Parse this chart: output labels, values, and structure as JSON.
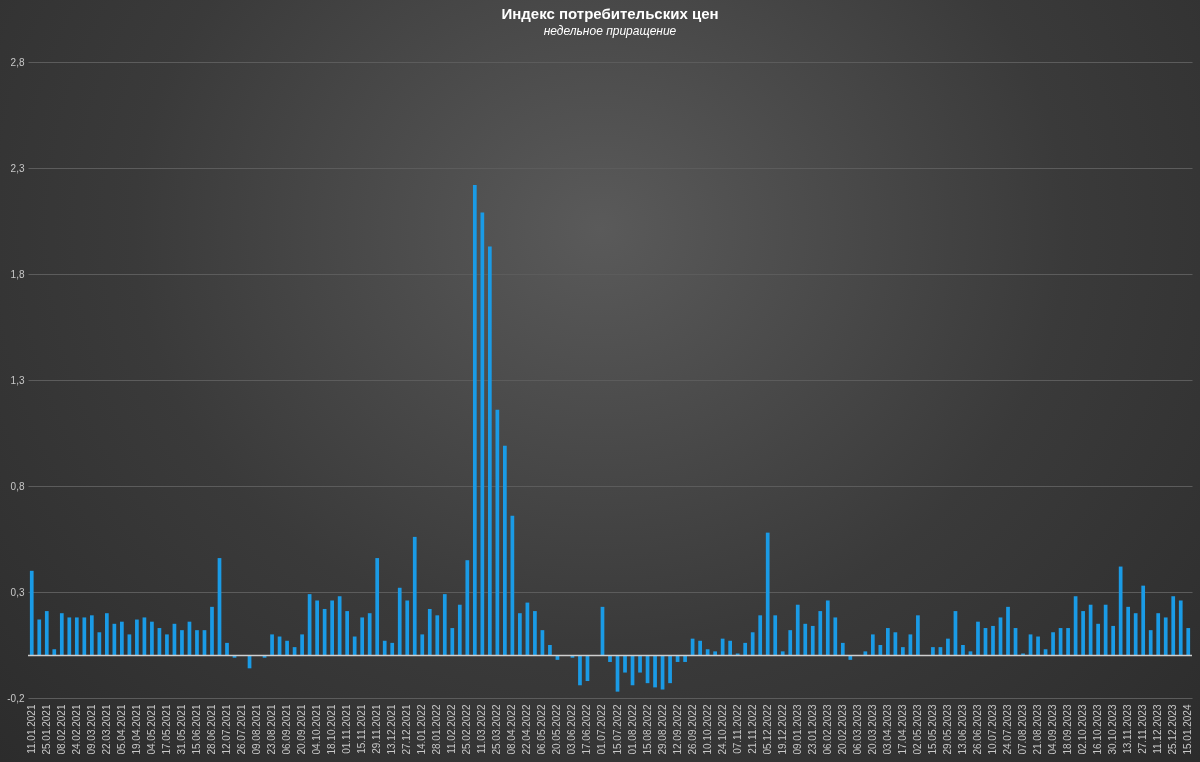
{
  "chart_data": {
    "type": "bar",
    "title": "Индекс потребительских цен",
    "subtitle": "недельное приращение",
    "categories": [
      "11.01.2021",
      null,
      "25.01.2021",
      null,
      "08.02.2021",
      null,
      "24.02.2021",
      null,
      "09.03.2021",
      null,
      "22.03.2021",
      null,
      "05.04.2021",
      null,
      "19.04.2021",
      null,
      "04.05.2021",
      null,
      "17.05.2021",
      null,
      "31.05.2021",
      null,
      "15.06.2021",
      null,
      "28.06.2021",
      null,
      "12.07.2021",
      null,
      "26.07.2021",
      null,
      "09.08.2021",
      null,
      "23.08.2021",
      null,
      "06.09.2021",
      null,
      "20.09.2021",
      null,
      "04.10.2021",
      null,
      "18.10.2021",
      null,
      "01.11.2021",
      null,
      "15.11.2021",
      null,
      "29.11.2021",
      null,
      "13.12.2021",
      null,
      "27.12.2021",
      null,
      "14.01.2022",
      null,
      "28.01.2022",
      null,
      "11.02.2022",
      null,
      "25.02.2022",
      null,
      "11.03.2022",
      null,
      "25.03.2022",
      null,
      "08.04.2022",
      null,
      "22.04.2022",
      null,
      "06.05.2022",
      null,
      "20.05.2022",
      null,
      "03.06.2022",
      null,
      "17.06.2022",
      null,
      "01.07.2022",
      null,
      "15.07.2022",
      null,
      "01.08.2022",
      null,
      "15.08.2022",
      null,
      "29.08.2022",
      null,
      "12.09.2022",
      null,
      "26.09.2022",
      null,
      "10.10.2022",
      null,
      "24.10.2022",
      null,
      "07.11.2022",
      null,
      "21.11.2022",
      null,
      "05.12.2022",
      null,
      "19.12.2022",
      null,
      "09.01.2023",
      null,
      "23.01.2023",
      null,
      "06.02.2023",
      null,
      "20.02.2023",
      null,
      "06.03.2023",
      null,
      "20.03.2023",
      null,
      "03.04.2023",
      null,
      "17.04.2023",
      null,
      "02.05.2023",
      null,
      "15.05.2023",
      null,
      "29.05.2023",
      null,
      "13.06.2023",
      null,
      "26.06.2023",
      null,
      "10.07.2023",
      null,
      "24.07.2023",
      null,
      "07.08.2023",
      null,
      "21.08.2023",
      null,
      "04.09.2023",
      null,
      "18.09.2023",
      null,
      "02.10.2023",
      null,
      "16.10.2023",
      null,
      "30.10.2023",
      null,
      "13.11.2023",
      null,
      "27.11.2023",
      null,
      "11.12.2023",
      null,
      "25.12.2023",
      null,
      "15.01.2024"
    ],
    "values": [
      0.4,
      0.17,
      0.21,
      0.03,
      0.2,
      0.18,
      0.18,
      0.18,
      0.19,
      0.11,
      0.2,
      0.15,
      0.16,
      0.1,
      0.17,
      0.18,
      0.16,
      0.13,
      0.1,
      0.15,
      0.12,
      0.16,
      0.12,
      0.12,
      0.23,
      0.46,
      0.06,
      -0.01,
      0,
      -0.06,
      0,
      -0.01,
      0.1,
      0.09,
      0.07,
      0.04,
      0.1,
      0.29,
      0.26,
      0.22,
      0.26,
      0.28,
      0.21,
      0.09,
      0.18,
      0.2,
      0.46,
      0.07,
      0.06,
      0.32,
      0.26,
      0.56,
      0.1,
      0.22,
      0.19,
      0.29,
      0.13,
      0.24,
      0.45,
      2.22,
      2.09,
      1.93,
      1.16,
      0.99,
      0.66,
      0.2,
      0.25,
      0.21,
      0.12,
      0.05,
      -0.02,
      0,
      -0.01,
      -0.14,
      -0.12,
      0,
      0.23,
      -0.03,
      -0.17,
      -0.08,
      -0.14,
      -0.08,
      -0.13,
      -0.15,
      -0.16,
      -0.13,
      -0.03,
      -0.03,
      0.08,
      0.07,
      0.03,
      0.02,
      0.08,
      0.07,
      0.01,
      0.06,
      0.11,
      0.19,
      0.58,
      0.19,
      0.02,
      0.12,
      0.24,
      0.15,
      0.14,
      0.21,
      0.26,
      0.18,
      0.06,
      -0.02,
      0,
      0.02,
      0.1,
      0.05,
      0.13,
      0.11,
      0.04,
      0.1,
      0.19,
      0,
      0.04,
      0.04,
      0.08,
      0.21,
      0.05,
      0.02,
      0.16,
      0.13,
      0.14,
      0.18,
      0.23,
      0.13,
      0.01,
      0.1,
      0.09,
      0.03,
      0.11,
      0.13,
      0.13,
      0.28,
      0.21,
      0.24,
      0.15,
      0.24,
      0.14,
      0.42,
      0.23,
      0.2,
      0.33,
      0.12,
      0.2,
      0.18,
      0.28,
      0.26,
      0.13
    ],
    "color": "#1a9be6",
    "ylim": [
      -0.2,
      2.8
    ],
    "yticks": [
      {
        "value": -0.2,
        "label": "-0,2"
      },
      {
        "value": 0.3,
        "label": "0,3"
      },
      {
        "value": 0.8,
        "label": "0,8"
      },
      {
        "value": 1.3,
        "label": "1,3"
      },
      {
        "value": 1.8,
        "label": "1,8"
      },
      {
        "value": 2.3,
        "label": "2,3"
      },
      {
        "value": 2.8,
        "label": "2,8"
      }
    ],
    "grid": "y",
    "ref_lines": [
      {
        "axis": "y",
        "value": 0,
        "color": "#cfcfcf"
      }
    ]
  }
}
